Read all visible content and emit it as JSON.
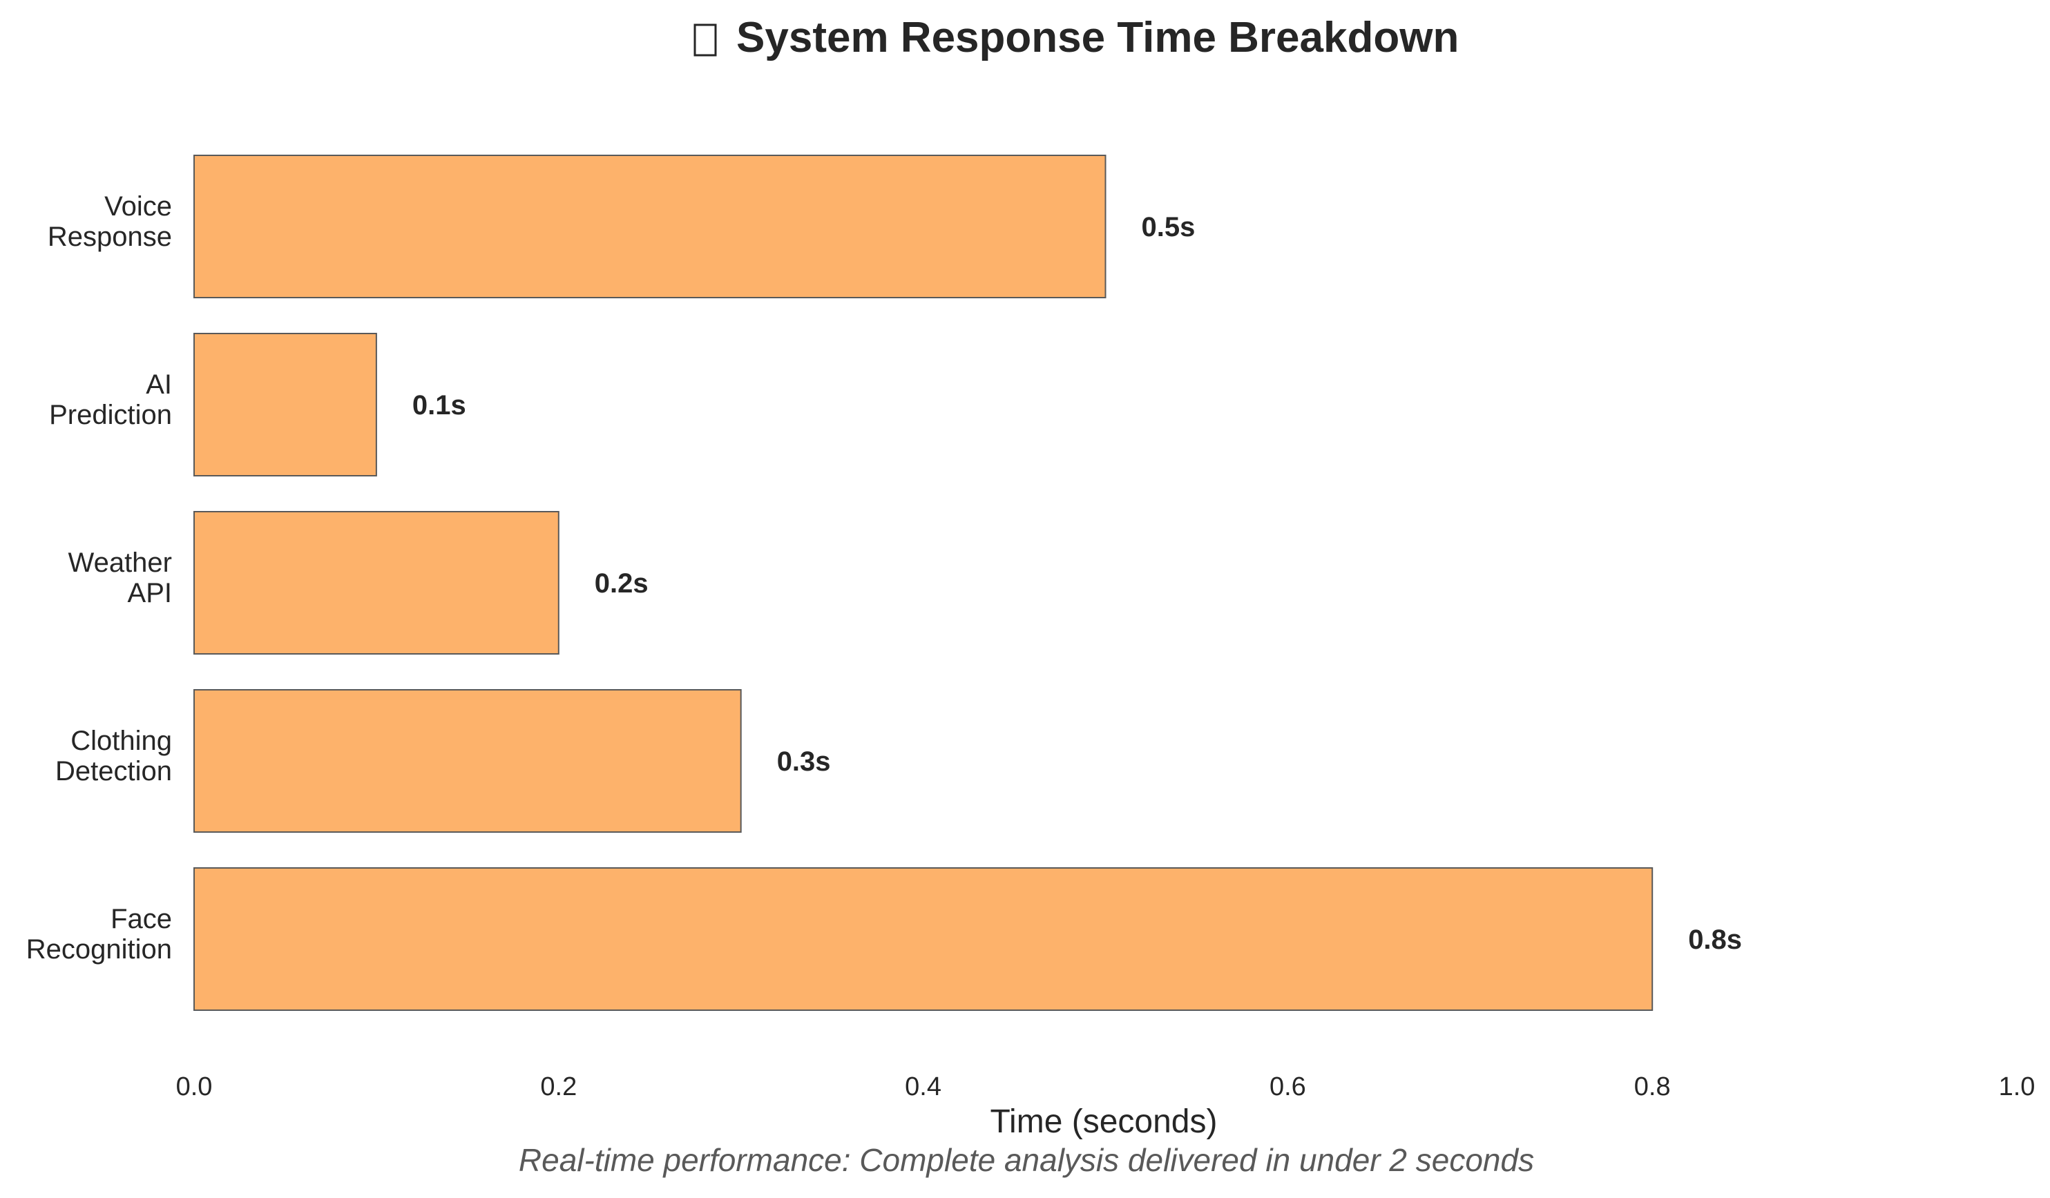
{
  "chart_data": {
    "type": "bar",
    "orientation": "horizontal",
    "title": "System Response Time Breakdown",
    "title_icon": "missing-glyph-box",
    "xlabel": "Time (seconds)",
    "ylabel": "",
    "caption": "Real-time performance: Complete analysis delivered in under 2 seconds",
    "xlim": [
      0,
      1.0
    ],
    "xticks": [
      "0.0",
      "0.2",
      "0.4",
      "0.6",
      "0.8",
      "1.0"
    ],
    "grid": false,
    "bar_color": "#fdb26b",
    "bar_edge_color": "#595959",
    "categories": [
      [
        "Face",
        "Recognition"
      ],
      [
        "Clothing",
        "Detection"
      ],
      [
        "Weather",
        "API"
      ],
      [
        "AI",
        "Prediction"
      ],
      [
        "Voice",
        "Response"
      ]
    ],
    "values": [
      0.8,
      0.3,
      0.2,
      0.1,
      0.5
    ],
    "data_labels": [
      "0.8s",
      "0.3s",
      "0.2s",
      "0.1s",
      "0.5s"
    ]
  }
}
